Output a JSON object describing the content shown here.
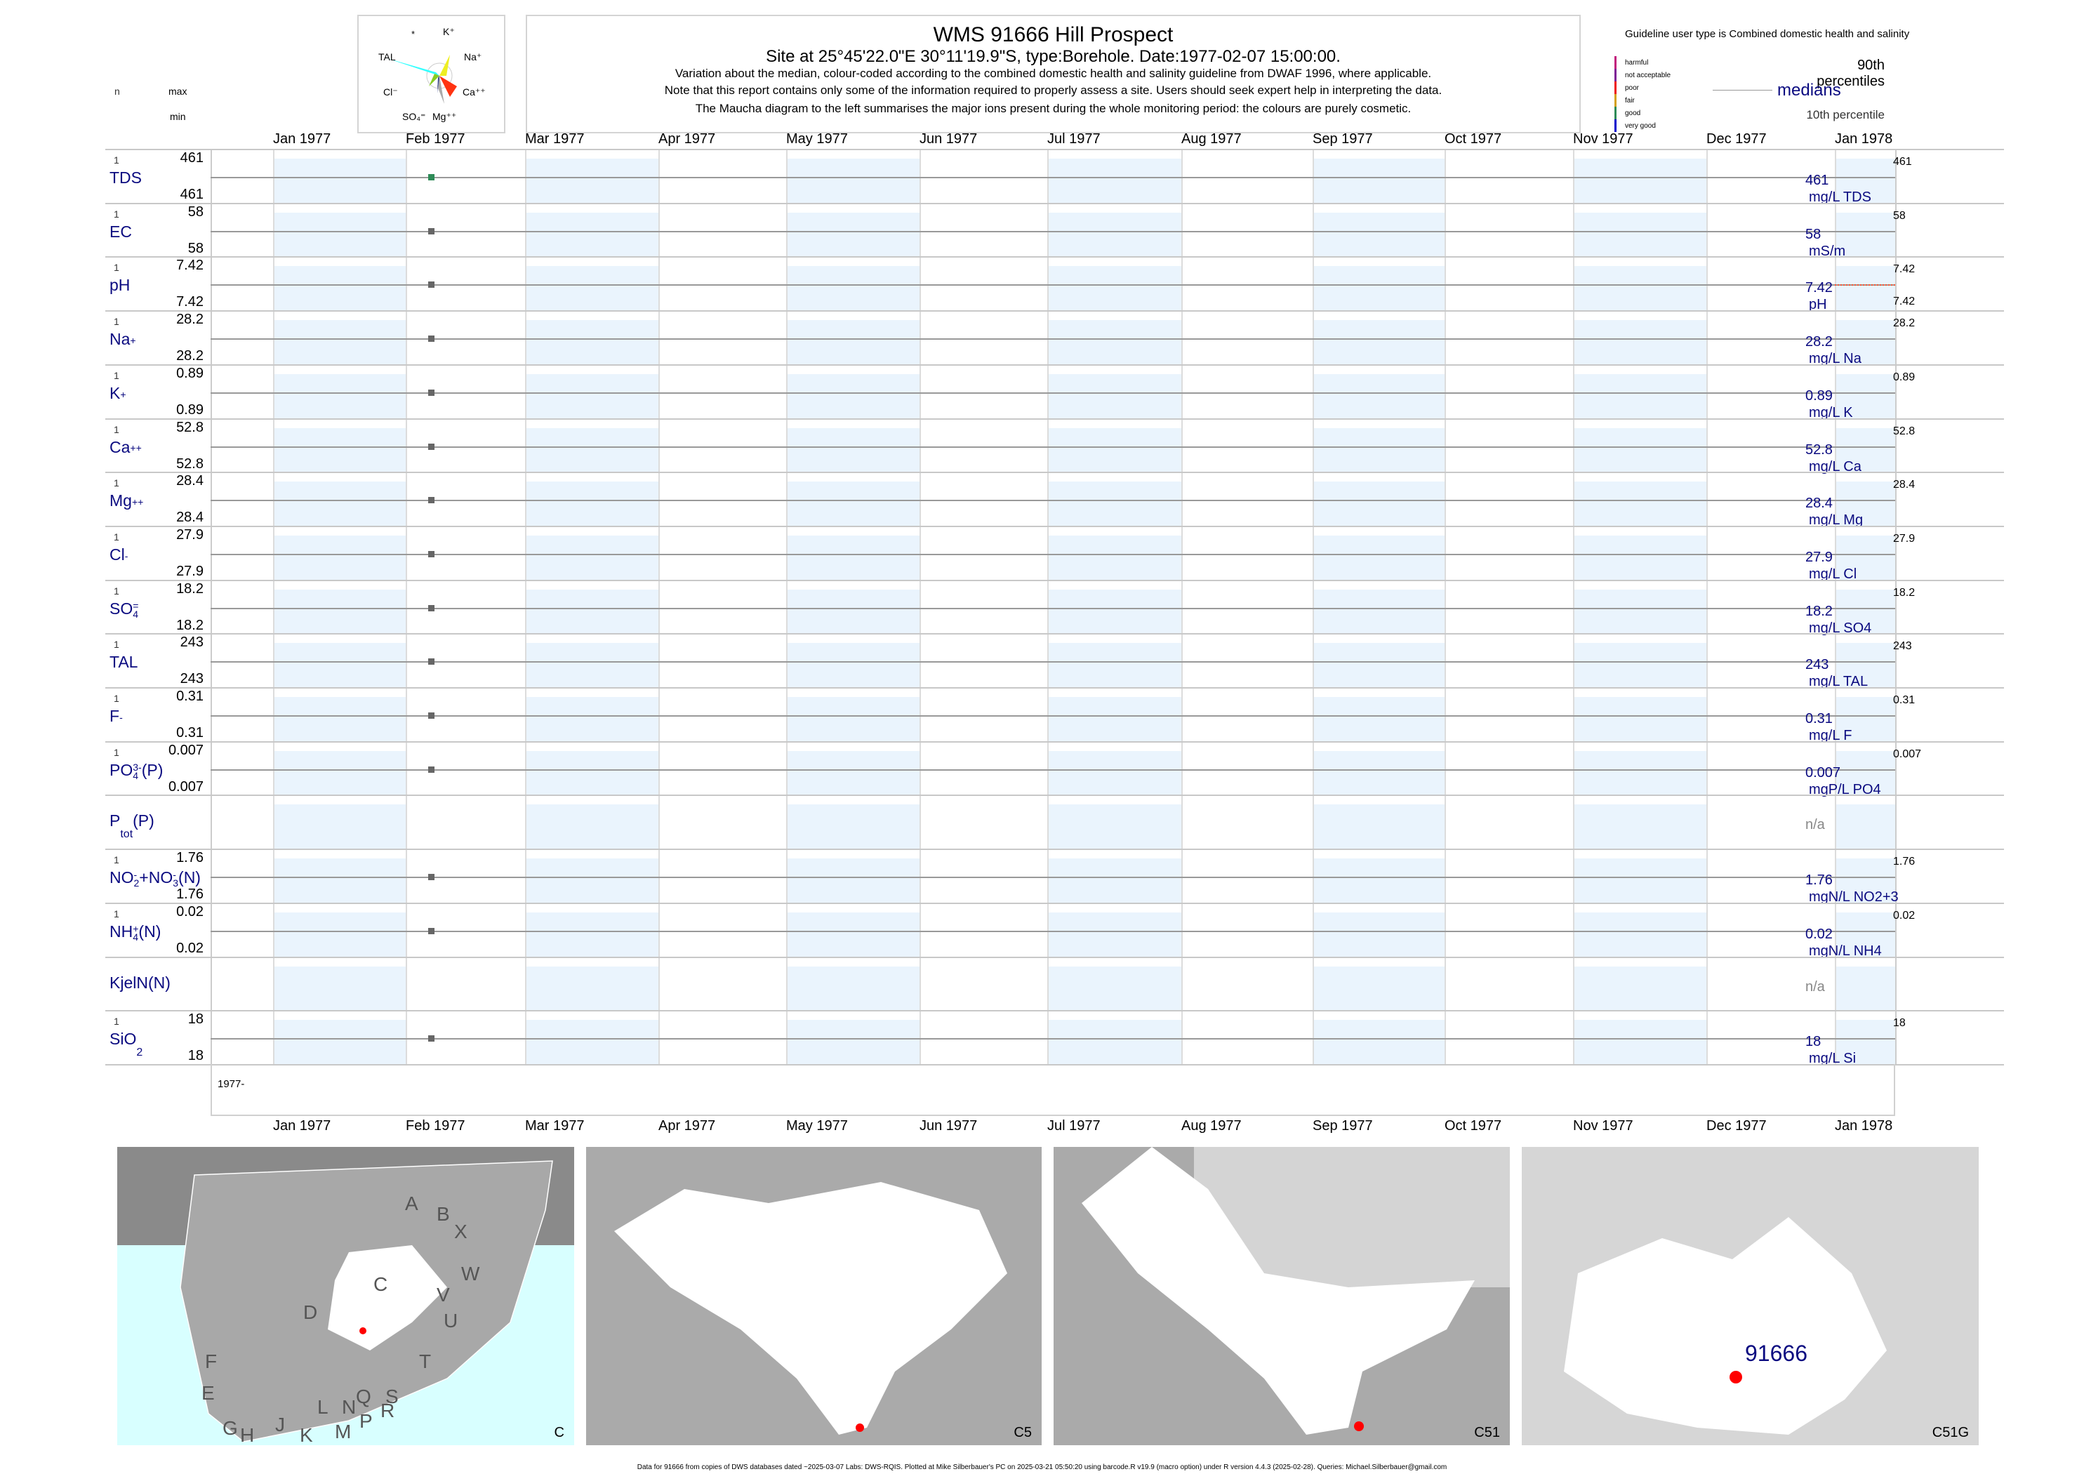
{
  "header": {
    "title": "WMS 91666  Hill Prospect",
    "subtitle": "Site at 25°45'22.0\"E 30°11'19.9\"S, type:Borehole. Date:1977-02-07 15:00:00.",
    "note1": "Variation about the median,  colour-coded according to the combined domestic health and salinity guideline from DWAF 1996, where applicable.",
    "note2": "Note that this report contains only some of the information required to properly assess a site. Users should seek expert help in interpreting the data.",
    "note3": "The Maucha diagram to the left summarises the major ions present during the whole monitoring period: the colours are purely cosmetic."
  },
  "maucha": {
    "star": "*",
    "k": "K⁺",
    "tal": "TAL",
    "na": "Na⁺",
    "cl": "Cl⁻",
    "ca": "Ca⁺⁺",
    "so4": "SO₄⁼",
    "mg": "Mg⁺⁺"
  },
  "column_headers": {
    "n": "n",
    "max": "max",
    "min": "min"
  },
  "legend": {
    "guideline": "Guideline user type is Combined domestic health and salinity",
    "classes": [
      {
        "label": "harmful",
        "color": "#c2187c"
      },
      {
        "label": "not acceptable",
        "color": "#7d1a96"
      },
      {
        "label": "poor",
        "color": "#ee1111"
      },
      {
        "label": "fair",
        "color": "#d4a017"
      },
      {
        "label": "good",
        "color": "#2e8b57"
      },
      {
        "label": "very good",
        "color": "#0000cc"
      }
    ],
    "p90": "90th percentiles",
    "medians": "medians",
    "p10": "10th percentile"
  },
  "chart_data": {
    "type": "scatter",
    "x_axis_months": [
      "Jan 1977",
      "Feb 1977",
      "Mar 1977",
      "Apr 1977",
      "May 1977",
      "Jun 1977",
      "Jul 1977",
      "Aug 1977",
      "Sep 1977",
      "Oct 1977",
      "Nov 1977",
      "Dec 1977",
      "Jan 1978"
    ],
    "year_label": "1977-",
    "sample_date": "1977-02-07",
    "series": [
      {
        "key": "TDS",
        "label": [
          {
            "t": "TDS"
          }
        ],
        "n": "1",
        "max": "461",
        "min": "461",
        "value": "461",
        "unit": "mg/L TDS",
        "p90": "461",
        "p10": "",
        "color": "#2e8b57"
      },
      {
        "key": "EC",
        "label": [
          {
            "t": "EC"
          }
        ],
        "n": "1",
        "max": "58",
        "min": "58",
        "value": "58",
        "unit": "mS/m",
        "p90": "58",
        "p10": "",
        "color": "#666666"
      },
      {
        "key": "pH",
        "label": [
          {
            "t": "pH"
          }
        ],
        "n": "1",
        "max": "7.42",
        "min": "7.42",
        "value": "7.42",
        "unit": "pH",
        "p90": "7.42",
        "p10": "7.42",
        "color": "#666666"
      },
      {
        "key": "Na",
        "label": [
          {
            "t": "Na"
          },
          {
            "sup": "+"
          }
        ],
        "n": "1",
        "max": "28.2",
        "min": "28.2",
        "value": "28.2",
        "unit": "mg/L Na",
        "p90": "28.2",
        "p10": "",
        "color": "#666666"
      },
      {
        "key": "K",
        "label": [
          {
            "t": "K"
          },
          {
            "sup": "+"
          }
        ],
        "n": "1",
        "max": "0.89",
        "min": "0.89",
        "value": "0.89",
        "unit": "mg/L K",
        "p90": "0.89",
        "p10": "",
        "color": "#666666"
      },
      {
        "key": "Ca",
        "label": [
          {
            "t": "Ca"
          },
          {
            "sup": "++"
          }
        ],
        "n": "1",
        "max": "52.8",
        "min": "52.8",
        "value": "52.8",
        "unit": "mg/L Ca",
        "p90": "52.8",
        "p10": "",
        "color": "#666666"
      },
      {
        "key": "Mg",
        "label": [
          {
            "t": "Mg"
          },
          {
            "sup": "++"
          }
        ],
        "n": "1",
        "max": "28.4",
        "min": "28.4",
        "value": "28.4",
        "unit": "mg/L Mg",
        "p90": "28.4",
        "p10": "",
        "color": "#666666"
      },
      {
        "key": "Cl",
        "label": [
          {
            "t": "Cl"
          },
          {
            "sup": "-"
          }
        ],
        "n": "1",
        "max": "27.9",
        "min": "27.9",
        "value": "27.9",
        "unit": "mg/L Cl",
        "p90": "27.9",
        "p10": "",
        "color": "#666666"
      },
      {
        "key": "SO4",
        "label": [
          {
            "t": "SO"
          },
          {
            "sub": "4",
            "sup": "="
          }
        ],
        "n": "1",
        "max": "18.2",
        "min": "18.2",
        "value": "18.2",
        "unit": "mg/L SO4",
        "p90": "18.2",
        "p10": "",
        "color": "#666666"
      },
      {
        "key": "TAL",
        "label": [
          {
            "t": "TAL"
          }
        ],
        "n": "1",
        "max": "243",
        "min": "243",
        "value": "243",
        "unit": "mg/L TAL",
        "p90": "243",
        "p10": "",
        "color": "#666666"
      },
      {
        "key": "F",
        "label": [
          {
            "t": "F"
          },
          {
            "sup": "-"
          }
        ],
        "n": "1",
        "max": "0.31",
        "min": "0.31",
        "value": "0.31",
        "unit": "mg/L F",
        "p90": "0.31",
        "p10": "",
        "color": "#666666"
      },
      {
        "key": "PO4",
        "label": [
          {
            "t": "PO"
          },
          {
            "sub": "4",
            "sup": "3-"
          },
          {
            "t": "(P)"
          }
        ],
        "n": "1",
        "max": "0.007",
        "min": "0.007",
        "value": "0.007",
        "unit": "mgP/L PO4",
        "p90": "0.007",
        "p10": "",
        "color": "#666666"
      },
      {
        "key": "Ptot",
        "label": [
          {
            "t": "P"
          },
          {
            "sub": "tot"
          },
          {
            "t": "(P)"
          }
        ],
        "n": "",
        "max": "",
        "min": "",
        "value": "n/a",
        "unit": "",
        "p90": "",
        "p10": "",
        "color": ""
      },
      {
        "key": "NO23",
        "label": [
          {
            "t": "NO"
          },
          {
            "sub": "2",
            "sup": "-"
          },
          {
            "t": "+NO"
          },
          {
            "sub": "3",
            "sup": "-"
          },
          {
            "t": "(N)"
          }
        ],
        "n": "1",
        "max": "1.76",
        "min": "1.76",
        "value": "1.76",
        "unit": "mgN/L NO2+3",
        "p90": "1.76",
        "p10": "",
        "color": "#666666"
      },
      {
        "key": "NH4",
        "label": [
          {
            "t": "NH"
          },
          {
            "sub": "4",
            "sup": "+"
          },
          {
            "t": "(N)"
          }
        ],
        "n": "1",
        "max": "0.02",
        "min": "0.02",
        "value": "0.02",
        "unit": "mgN/L NH4",
        "p90": "0.02",
        "p10": "",
        "color": "#666666"
      },
      {
        "key": "KjelN",
        "label": [
          {
            "t": "KjelN(N)"
          }
        ],
        "n": "",
        "max": "",
        "min": "",
        "value": "n/a",
        "unit": "",
        "p90": "",
        "p10": "",
        "color": ""
      },
      {
        "key": "SiO2",
        "label": [
          {
            "t": "SiO"
          },
          {
            "sub": "2"
          }
        ],
        "n": "1",
        "max": "18",
        "min": "18",
        "value": "18",
        "unit": "mg/L Si",
        "p90": "18",
        "p10": "",
        "color": "#666666"
      }
    ]
  },
  "maps": {
    "panels": [
      "C",
      "C5",
      "C51",
      "C51G"
    ],
    "site_label": "91666",
    "region_letters": [
      "A",
      "B",
      "X",
      "W",
      "C",
      "V",
      "U",
      "D",
      "T",
      "F",
      "E",
      "L",
      "N",
      "Q",
      "S",
      "R",
      "G",
      "H",
      "J",
      "K",
      "M",
      "P"
    ]
  },
  "footer": "Data for 91666 from copies of DWS databases dated ~2025-03-07 Labs: DWS-RQIS. Plotted at Mike Silberbauer's PC on 2025-03-21 05:50:20 using barcode.R v19.9 (macro option) under R version 4.4.3 (2025-02-28). Queries: Michael.Silberbauer@gmail.com"
}
